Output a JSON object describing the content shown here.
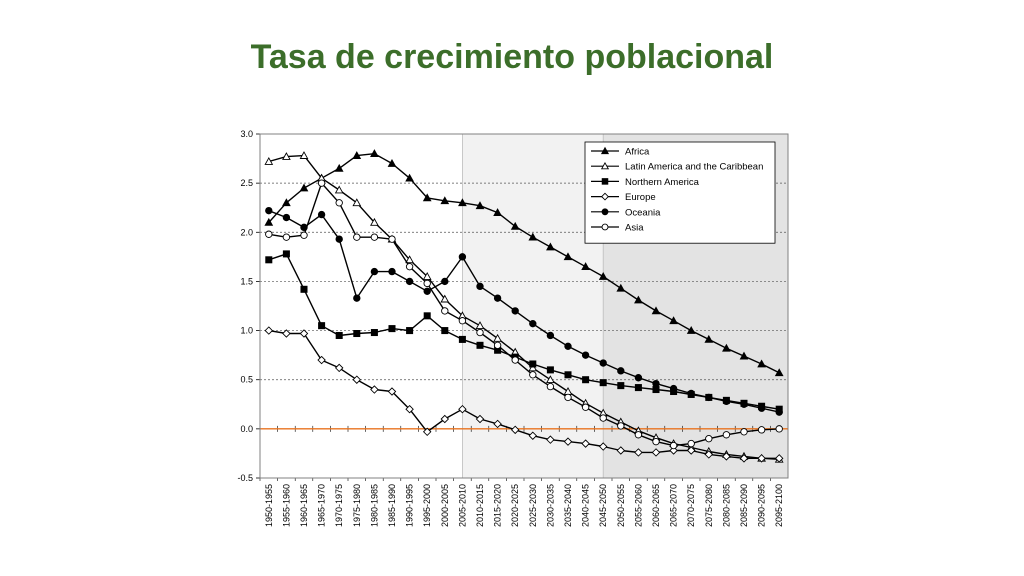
{
  "slide": {
    "title": "Tasa de crecimiento poblacional"
  },
  "colors": {
    "title": "#3c6e2a",
    "zero_line": "#e8731f",
    "shade_light": "#f2f2f2",
    "shade_dark": "#e3e3e3",
    "series": "#000000"
  },
  "chart_data": {
    "type": "line",
    "title": "",
    "xlabel": "",
    "ylabel": "",
    "ylim": [
      -0.5,
      3.0
    ],
    "yticks": [
      "3.0",
      "2.5",
      "2.0",
      "1.5",
      "1.0",
      "0.5",
      "0.0",
      "-0.5"
    ],
    "ytick_values": [
      3.0,
      2.5,
      2.0,
      1.5,
      1.0,
      0.5,
      0.0,
      -0.5
    ],
    "grid": "horizontal-dashed",
    "legend_position": "top-right",
    "reference_line": 0.0,
    "shaded_ranges": [
      {
        "from": "2005-2010",
        "to": "2045-2050",
        "shade": "light"
      },
      {
        "from": "2045-2050",
        "to": "2095-2100",
        "shade": "dark"
      }
    ],
    "categories": [
      "1950-1955",
      "1955-1960",
      "1960-1965",
      "1965-1970",
      "1970-1975",
      "1975-1980",
      "1980-1985",
      "1985-1990",
      "1990-1995",
      "1995-2000",
      "2000-2005",
      "2005-2010",
      "2010-2015",
      "2015-2020",
      "2020-2025",
      "2025-2030",
      "2030-2035",
      "2035-2040",
      "2040-2045",
      "2045-2050",
      "2050-2055",
      "2055-2060",
      "2060-2065",
      "2065-2070",
      "2070-2075",
      "2075-2080",
      "2080-2085",
      "2085-2090",
      "2090-2095",
      "2095-2100"
    ],
    "series": [
      {
        "name": "Africa",
        "marker": "triangle-filled",
        "values": [
          2.1,
          2.3,
          2.45,
          2.55,
          2.65,
          2.78,
          2.8,
          2.7,
          2.55,
          2.35,
          2.32,
          2.3,
          2.27,
          2.2,
          2.06,
          1.95,
          1.85,
          1.75,
          1.65,
          1.55,
          1.43,
          1.31,
          1.2,
          1.1,
          1.0,
          0.91,
          0.82,
          0.74,
          0.66,
          0.57
        ]
      },
      {
        "name": "Latin America and the Caribbean",
        "marker": "triangle-open",
        "values": [
          2.72,
          2.77,
          2.78,
          2.55,
          2.43,
          2.3,
          2.1,
          1.93,
          1.72,
          1.55,
          1.32,
          1.15,
          1.05,
          0.92,
          0.78,
          0.62,
          0.5,
          0.38,
          0.26,
          0.16,
          0.07,
          -0.02,
          -0.09,
          -0.15,
          -0.19,
          -0.23,
          -0.26,
          -0.28,
          -0.3,
          -0.31
        ]
      },
      {
        "name": "Northern America",
        "marker": "square-filled",
        "values": [
          1.72,
          1.78,
          1.42,
          1.05,
          0.95,
          0.97,
          0.98,
          1.02,
          1.0,
          1.15,
          1.0,
          0.91,
          0.85,
          0.8,
          0.73,
          0.66,
          0.6,
          0.55,
          0.5,
          0.47,
          0.44,
          0.42,
          0.4,
          0.38,
          0.35,
          0.32,
          0.29,
          0.26,
          0.23,
          0.2
        ]
      },
      {
        "name": "Europe",
        "marker": "diamond-open",
        "values": [
          1.0,
          0.97,
          0.97,
          0.7,
          0.62,
          0.5,
          0.4,
          0.38,
          0.2,
          -0.03,
          0.1,
          0.2,
          0.1,
          0.05,
          -0.01,
          -0.07,
          -0.11,
          -0.13,
          -0.15,
          -0.18,
          -0.22,
          -0.24,
          -0.24,
          -0.22,
          -0.22,
          -0.26,
          -0.28,
          -0.3,
          -0.3,
          -0.3
        ]
      },
      {
        "name": "Oceania",
        "marker": "circle-filled",
        "values": [
          2.22,
          2.15,
          2.05,
          2.18,
          1.93,
          1.33,
          1.6,
          1.6,
          1.5,
          1.4,
          1.5,
          1.75,
          1.45,
          1.33,
          1.2,
          1.07,
          0.95,
          0.84,
          0.75,
          0.67,
          0.59,
          0.52,
          0.46,
          0.41,
          0.36,
          0.32,
          0.28,
          0.25,
          0.21,
          0.17
        ]
      },
      {
        "name": "Asia",
        "marker": "circle-open",
        "values": [
          1.98,
          1.95,
          1.97,
          2.5,
          2.3,
          1.95,
          1.95,
          1.93,
          1.65,
          1.48,
          1.2,
          1.1,
          0.98,
          0.85,
          0.7,
          0.55,
          0.43,
          0.32,
          0.22,
          0.11,
          0.03,
          -0.06,
          -0.13,
          -0.17,
          -0.15,
          -0.1,
          -0.06,
          -0.03,
          -0.01,
          0.0
        ]
      }
    ]
  }
}
